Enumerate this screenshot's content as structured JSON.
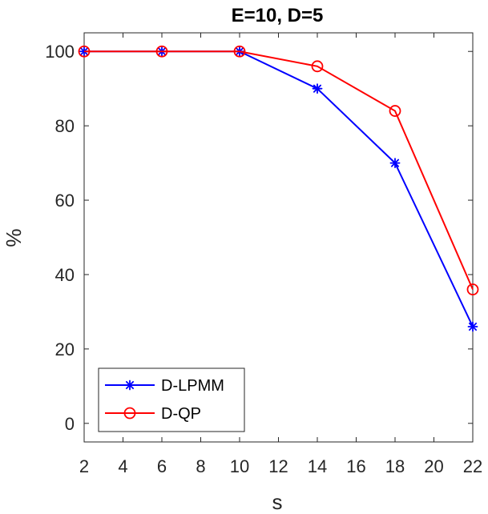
{
  "chart_data": {
    "type": "line",
    "title": "E=10, D=5",
    "xlabel": "s",
    "ylabel": "%",
    "xlim": [
      2,
      22
    ],
    "ylim": [
      -5,
      105
    ],
    "xticks": [
      2,
      4,
      6,
      8,
      10,
      12,
      14,
      16,
      18,
      20,
      22
    ],
    "yticks": [
      0,
      20,
      40,
      60,
      80,
      100
    ],
    "grid": false,
    "legend_position": "bottom-left",
    "x": [
      2,
      6,
      10,
      14,
      18,
      22
    ],
    "series": [
      {
        "name": "D-LPMM",
        "color": "#0000ff",
        "marker": "asterisk",
        "values": [
          100,
          100,
          100,
          90,
          70,
          26
        ]
      },
      {
        "name": "D-QP",
        "color": "#ff0000",
        "marker": "circle",
        "values": [
          100,
          100,
          100,
          96,
          84,
          36
        ]
      }
    ]
  }
}
